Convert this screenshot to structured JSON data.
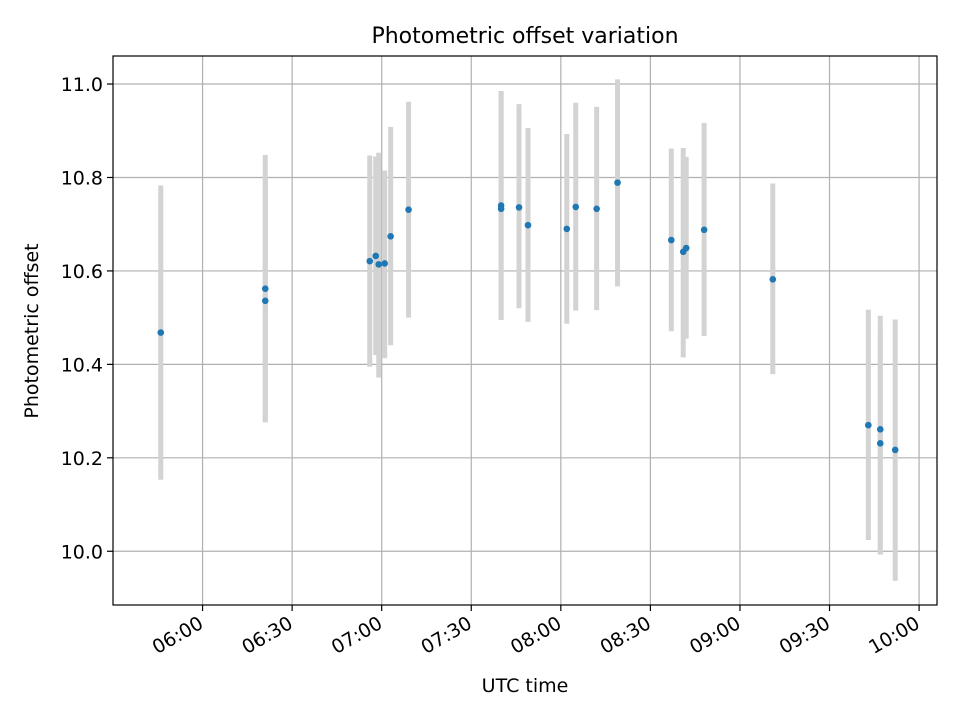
{
  "chart_data": {
    "type": "scatter",
    "title": "Photometric offset variation",
    "xlabel": "UTC time",
    "ylabel": "Photometric offset",
    "xlim": [
      "05:30",
      "10:06"
    ],
    "ylim": [
      9.885,
      11.06
    ],
    "x_ticks": [
      "06:00",
      "06:30",
      "07:00",
      "07:30",
      "08:00",
      "08:30",
      "09:00",
      "09:30",
      "10:00"
    ],
    "y_ticks": [
      "10.0",
      "10.2",
      "10.4",
      "10.6",
      "10.8",
      "11.0"
    ],
    "grid": true,
    "colors": {
      "points": "#1f77b4",
      "errorbars": "#d3d3d3",
      "grid": "#b0b0b0"
    },
    "points": [
      {
        "x": "05:46",
        "y": 10.468,
        "y_low": 10.153,
        "y_high": 10.783
      },
      {
        "x": "06:21",
        "y": 10.562,
        "y_low": 10.276,
        "y_high": 10.848
      },
      {
        "x": "06:21",
        "y": 10.536,
        "y_low": 10.276,
        "y_high": 10.8
      },
      {
        "x": "06:56",
        "y": 10.621,
        "y_low": 10.395,
        "y_high": 10.847
      },
      {
        "x": "06:58",
        "y": 10.632,
        "y_low": 10.42,
        "y_high": 10.845
      },
      {
        "x": "06:59",
        "y": 10.614,
        "y_low": 10.372,
        "y_high": 10.853
      },
      {
        "x": "07:01",
        "y": 10.616,
        "y_low": 10.413,
        "y_high": 10.815
      },
      {
        "x": "07:03",
        "y": 10.674,
        "y_low": 10.441,
        "y_high": 10.908
      },
      {
        "x": "07:09",
        "y": 10.731,
        "y_low": 10.5,
        "y_high": 10.962
      },
      {
        "x": "07:40",
        "y": 10.74,
        "y_low": 10.495,
        "y_high": 10.985
      },
      {
        "x": "07:40",
        "y": 10.733,
        "y_low": 10.495,
        "y_high": 10.985
      },
      {
        "x": "07:46",
        "y": 10.736,
        "y_low": 10.52,
        "y_high": 10.957
      },
      {
        "x": "07:49",
        "y": 10.698,
        "y_low": 10.491,
        "y_high": 10.906
      },
      {
        "x": "08:02",
        "y": 10.69,
        "y_low": 10.487,
        "y_high": 10.893
      },
      {
        "x": "08:05",
        "y": 10.737,
        "y_low": 10.515,
        "y_high": 10.96
      },
      {
        "x": "08:12",
        "y": 10.733,
        "y_low": 10.516,
        "y_high": 10.951
      },
      {
        "x": "08:19",
        "y": 10.789,
        "y_low": 10.567,
        "y_high": 11.01
      },
      {
        "x": "08:37",
        "y": 10.666,
        "y_low": 10.471,
        "y_high": 10.862
      },
      {
        "x": "08:41",
        "y": 10.641,
        "y_low": 10.415,
        "y_high": 10.863
      },
      {
        "x": "08:42",
        "y": 10.649,
        "y_low": 10.455,
        "y_high": 10.844
      },
      {
        "x": "08:48",
        "y": 10.688,
        "y_low": 10.461,
        "y_high": 10.917
      },
      {
        "x": "09:11",
        "y": 10.582,
        "y_low": 10.379,
        "y_high": 10.787
      },
      {
        "x": "09:43",
        "y": 10.27,
        "y_low": 10.024,
        "y_high": 10.517
      },
      {
        "x": "09:47",
        "y": 10.261,
        "y_low": 9.993,
        "y_high": 10.504
      },
      {
        "x": "09:47",
        "y": 10.231,
        "y_low": 9.993,
        "y_high": 10.47
      },
      {
        "x": "09:52",
        "y": 10.217,
        "y_low": 9.937,
        "y_high": 10.496
      }
    ]
  }
}
